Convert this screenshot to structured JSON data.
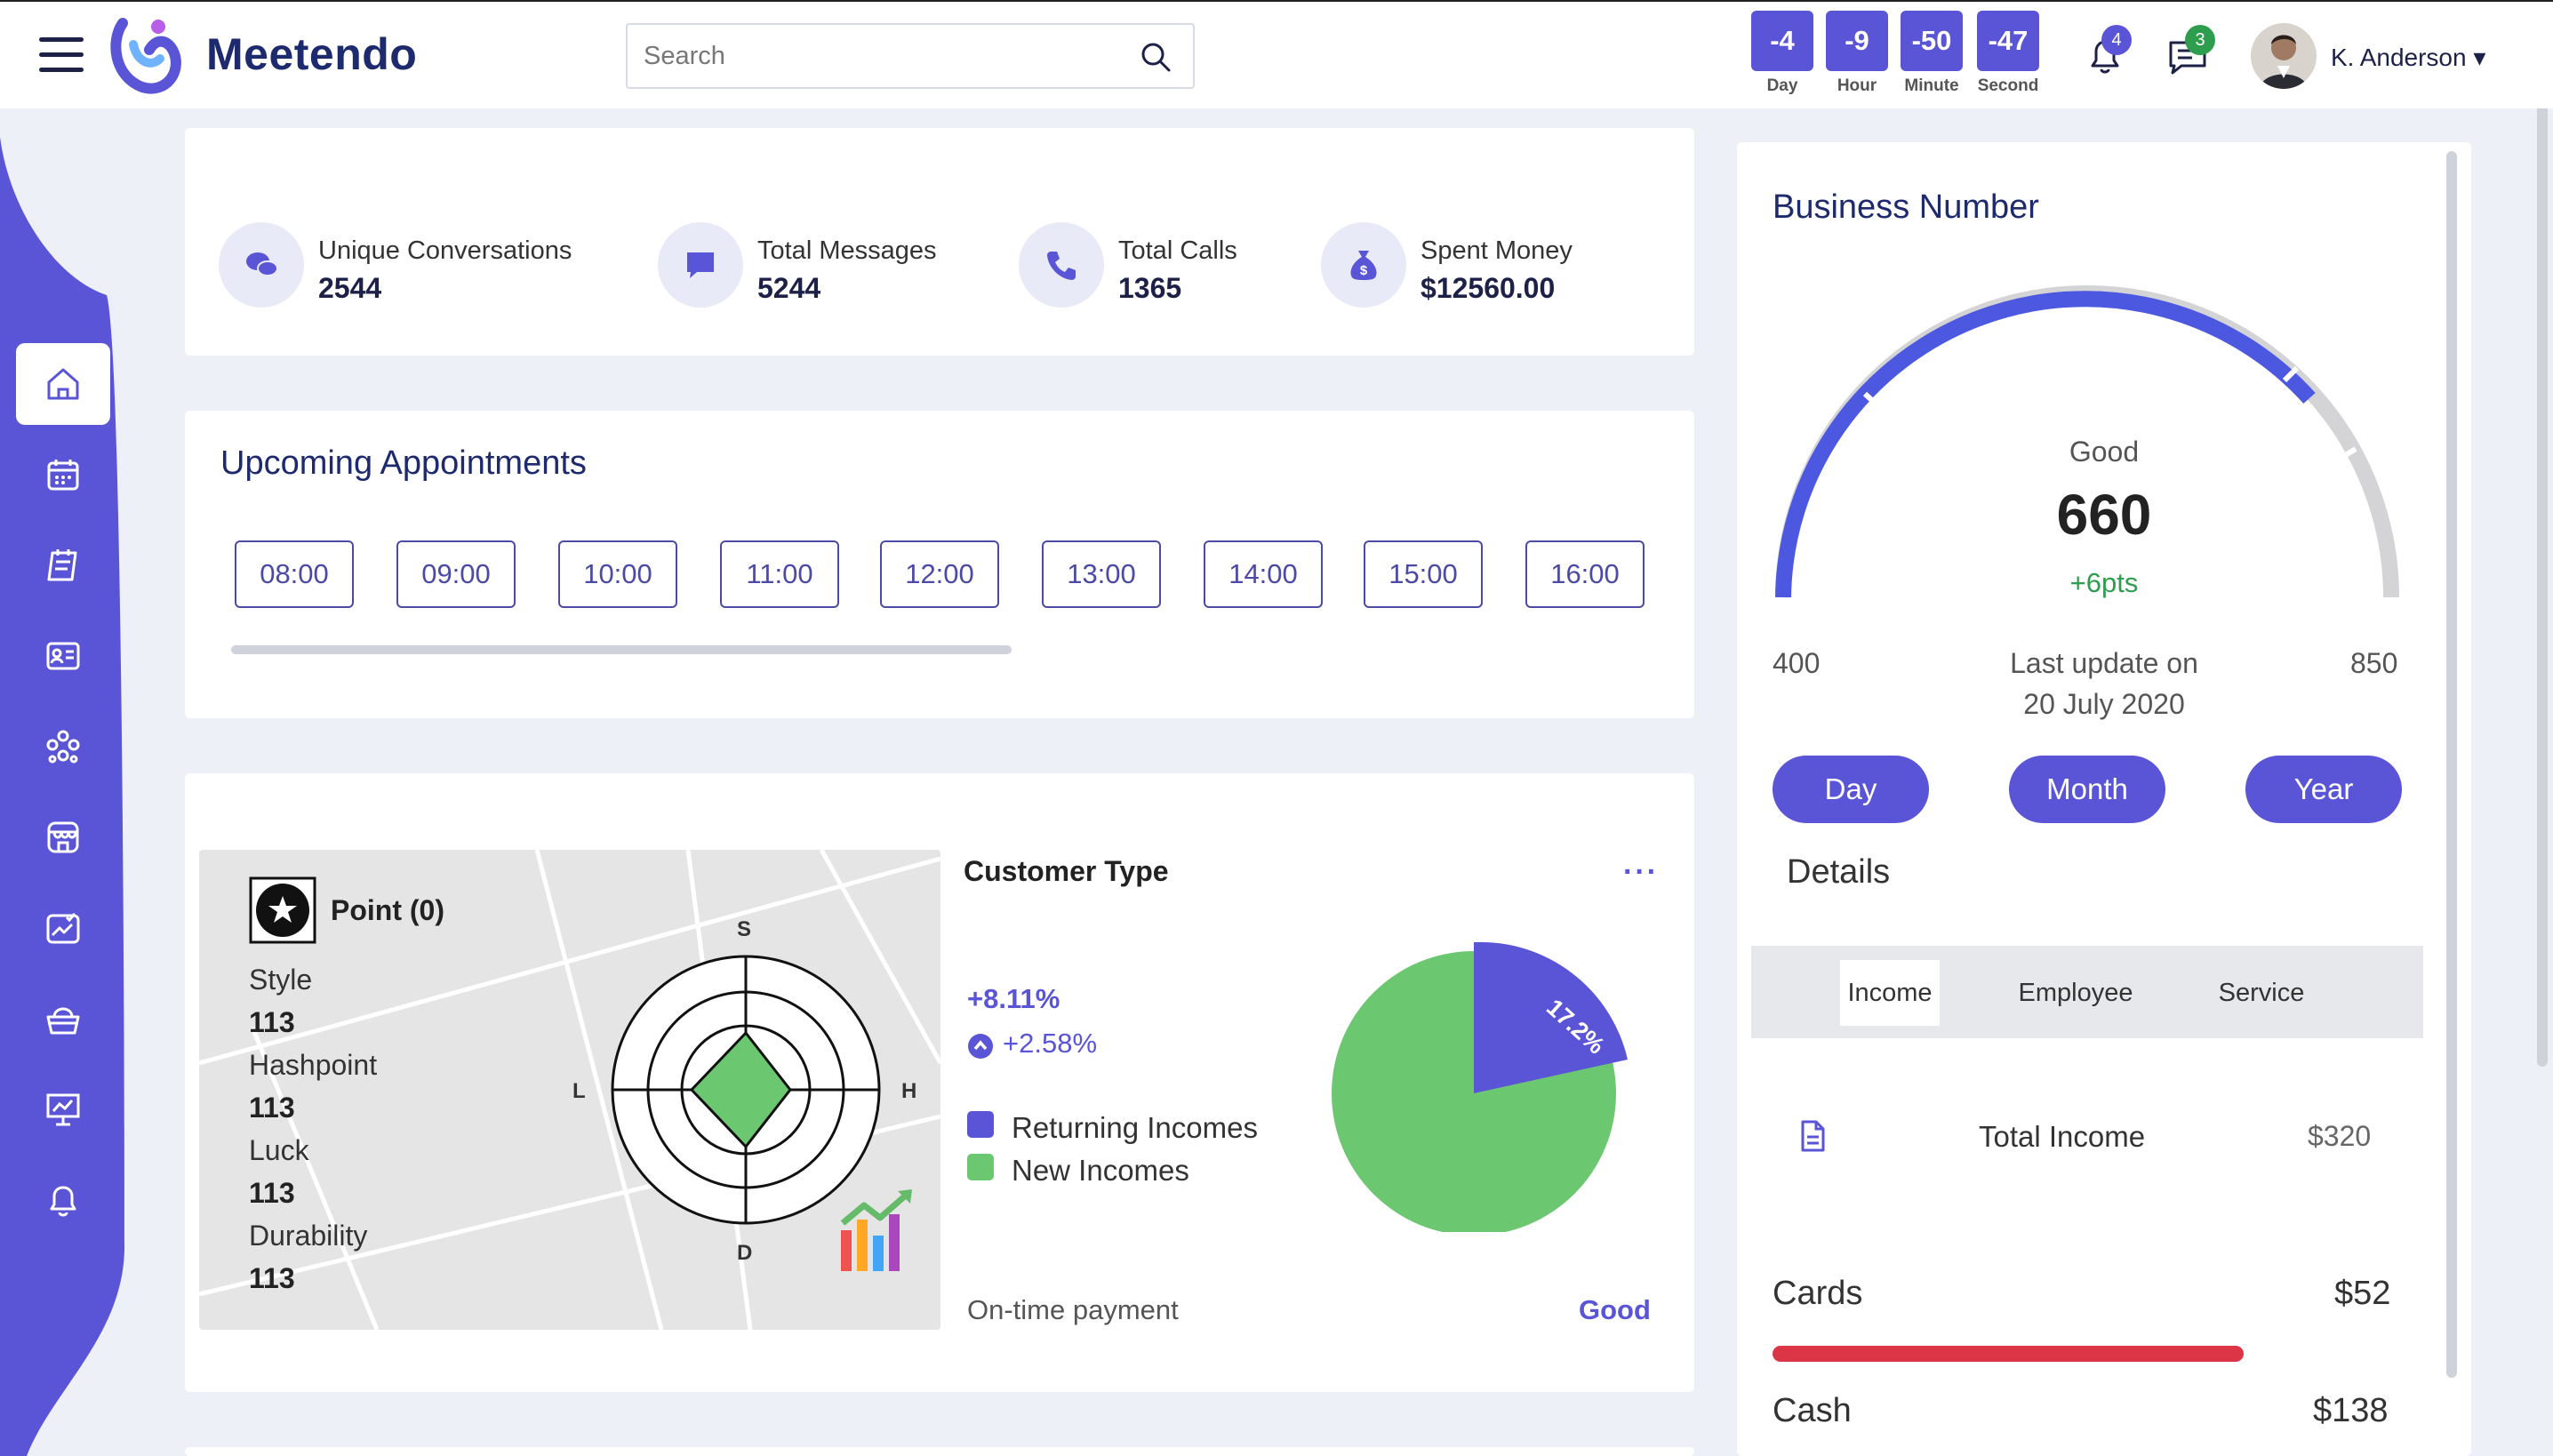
{
  "header": {
    "brand": "Meetendo",
    "search_placeholder": "Search",
    "countdown": [
      {
        "value": "-4",
        "label": "Day"
      },
      {
        "value": "-9",
        "label": "Hour"
      },
      {
        "value": "-50",
        "label": "Minute"
      },
      {
        "value": "-47",
        "label": "Second"
      }
    ],
    "notifications_count": "4",
    "messages_count": "3",
    "user_name": "K. Anderson ▾"
  },
  "sidebar": {
    "items": [
      "home-icon",
      "calendar-icon",
      "notes-icon",
      "contact-card-icon",
      "team-icon",
      "store-icon",
      "tasks-chart-icon",
      "basket-icon",
      "presentation-icon",
      "bell-icon"
    ],
    "active_index": 0,
    "accent": "#5a55d6"
  },
  "stats": [
    {
      "title": "Unique Conversations",
      "value": "2544",
      "icon": "chat-bubbles-icon"
    },
    {
      "title": "Total Messages",
      "value": "5244",
      "icon": "message-icon"
    },
    {
      "title": "Total Calls",
      "value": "1365",
      "icon": "phone-icon"
    },
    {
      "title": "Spent Money",
      "value": "$12560.00",
      "icon": "money-bag-icon"
    }
  ],
  "appointments": {
    "title": "Upcoming Appointments",
    "slots": [
      "08:00",
      "09:00",
      "10:00",
      "11:00",
      "12:00",
      "13:00",
      "14:00",
      "15:00",
      "16:00"
    ]
  },
  "point_card": {
    "title": "Point (0)",
    "attributes": [
      {
        "label": "Style",
        "value": "113"
      },
      {
        "label": "Hashpoint",
        "value": "113"
      },
      {
        "label": "Luck",
        "value": "113"
      },
      {
        "label": "Durability",
        "value": "113"
      }
    ],
    "radar_labels": {
      "top": "S",
      "right": "H",
      "bottom": "D",
      "left": "L"
    }
  },
  "customer_type": {
    "title": "Customer Type",
    "menu": "···",
    "change_main": "+8.11%",
    "change_sub": "+2.58%",
    "legend": [
      {
        "label": "Returning Incomes",
        "color": "#5a55d6"
      },
      {
        "label": "New Incomes",
        "color": "#6cc870"
      }
    ],
    "pie_label": "17.2%",
    "footer_label": "On-time payment",
    "footer_status": "Good"
  },
  "business": {
    "title": "Business Number",
    "rating": "Good",
    "score": "660",
    "delta": "+6pts",
    "min": "400",
    "max": "850",
    "last_update_label": "Last update on",
    "last_update_date": "20 July 2020",
    "periods": [
      "Day",
      "Month",
      "Year"
    ],
    "details_title": "Details",
    "tabs": [
      "Income",
      "Employee",
      "Service"
    ],
    "active_tab": "Income",
    "total_income_label": "Total Income",
    "total_income_value": "$320",
    "rows": [
      {
        "label": "Cards",
        "value": "$52",
        "progress": 0.78,
        "color": "#dc3545"
      },
      {
        "label": "Cash",
        "value": "$138"
      }
    ]
  }
}
